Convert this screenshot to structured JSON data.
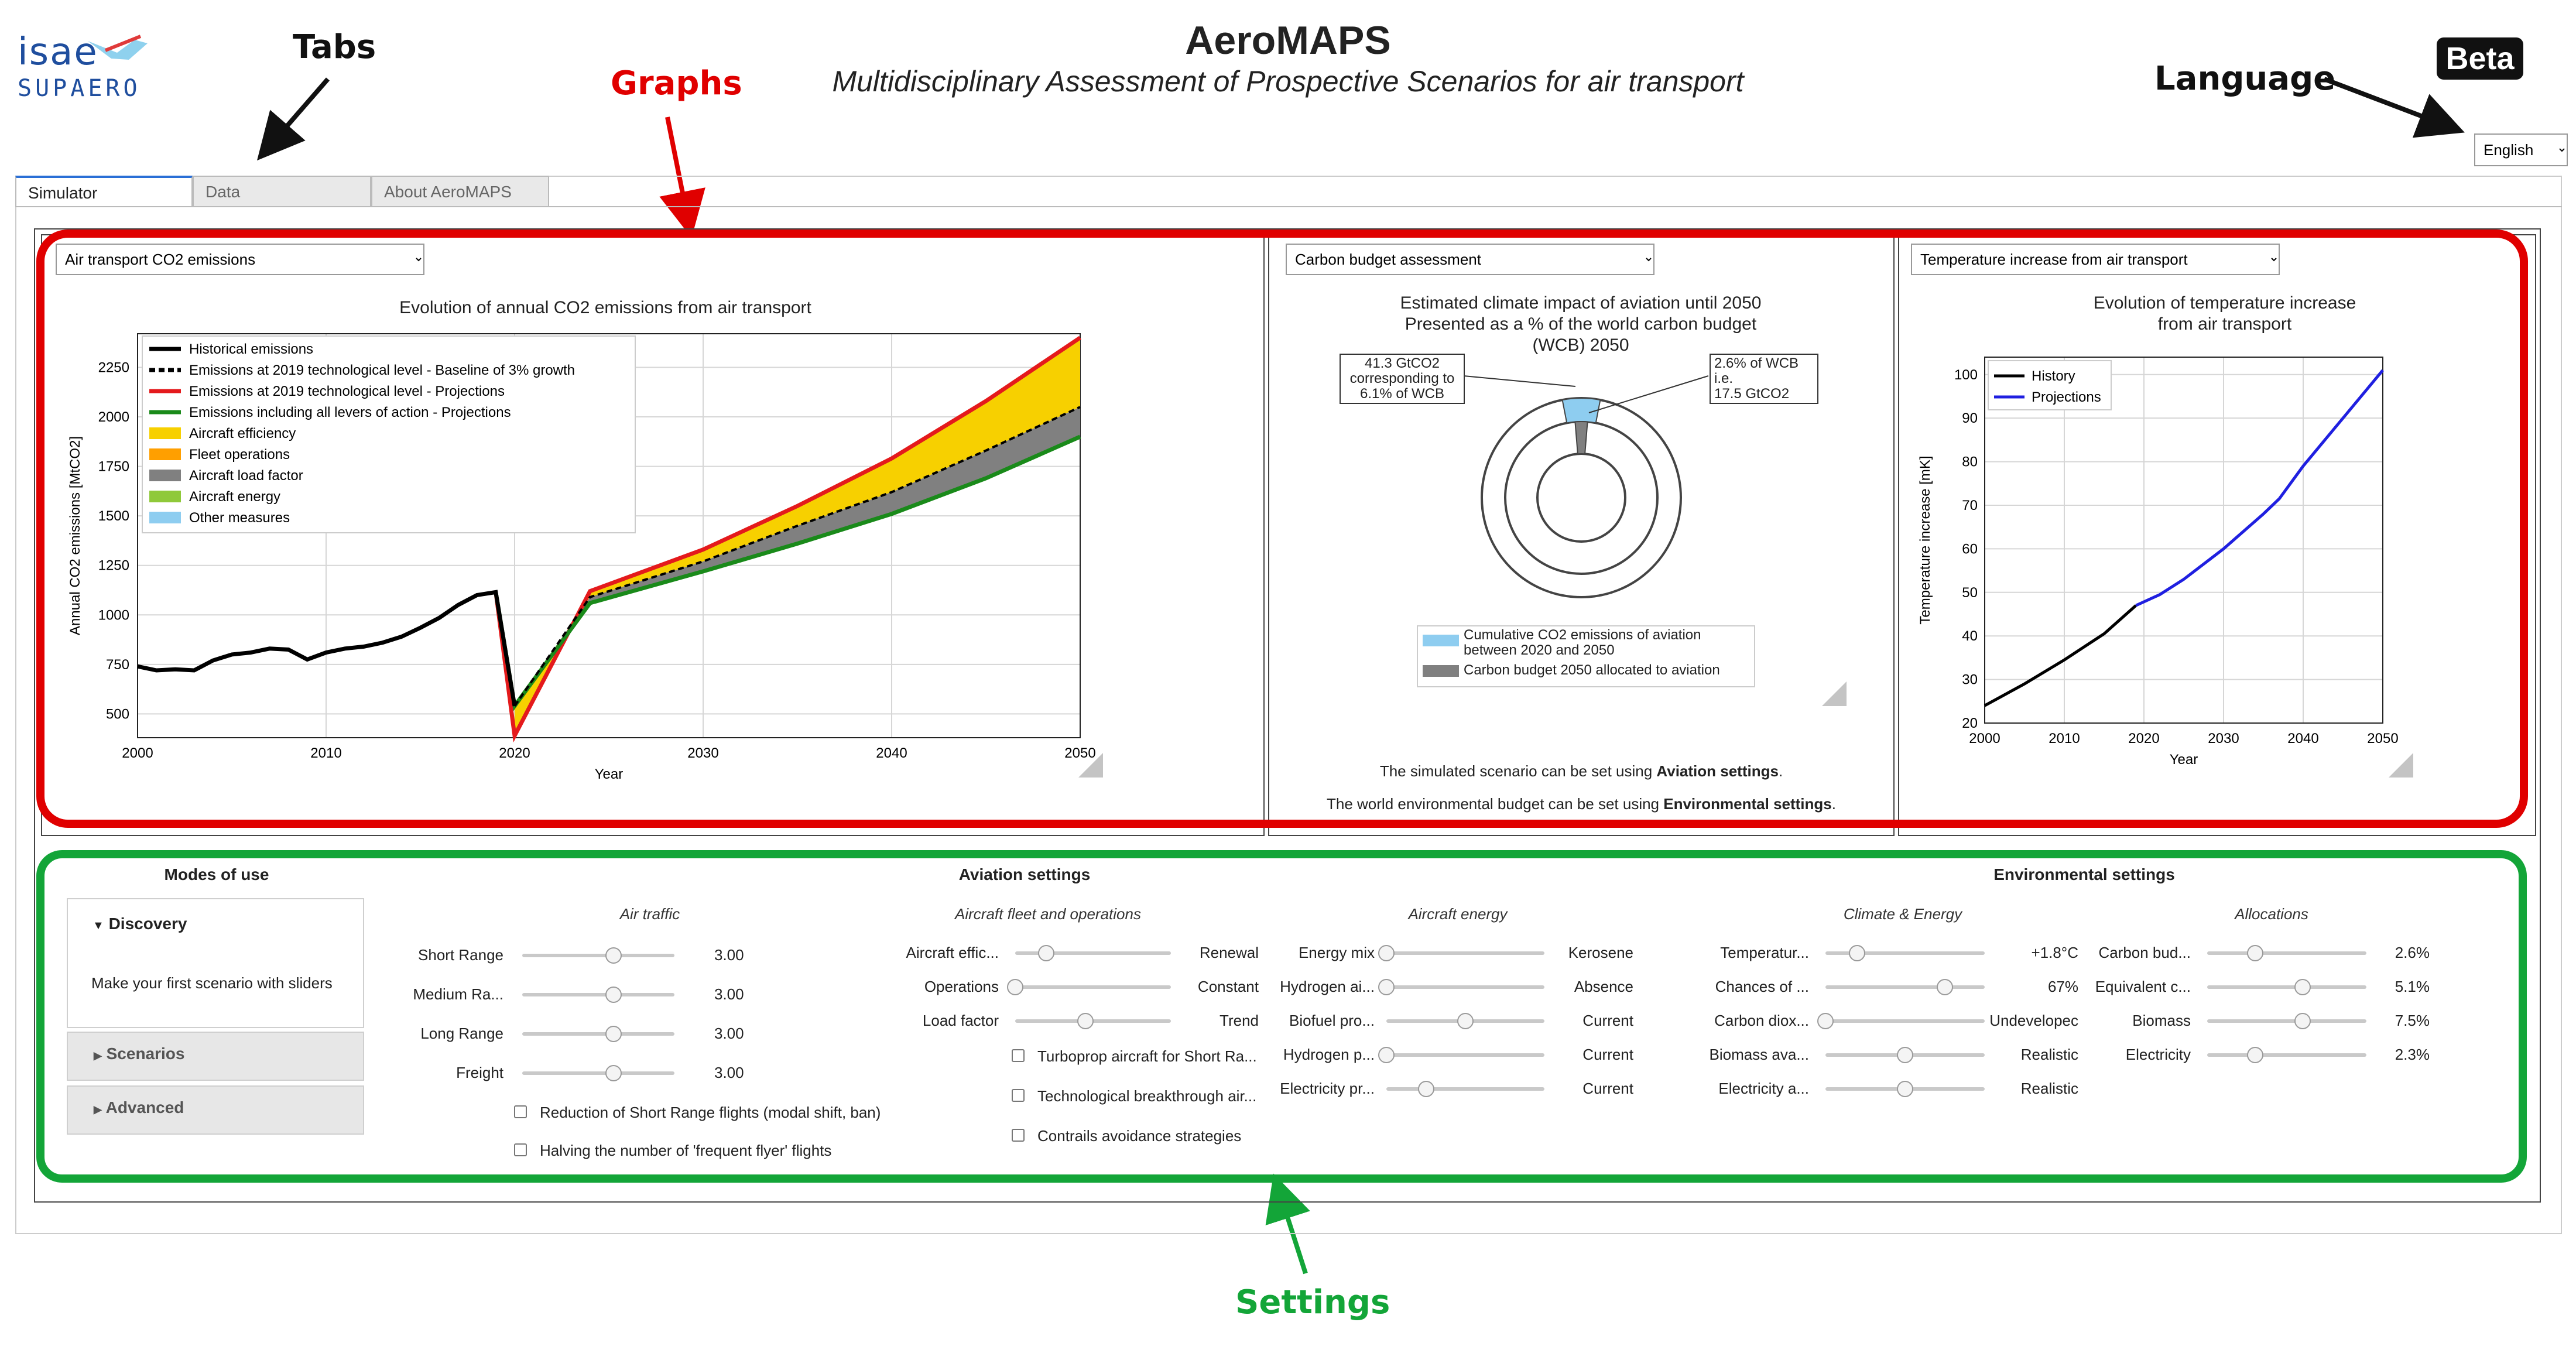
{
  "logo": {
    "line1": "isae",
    "line2": "SUPAERO"
  },
  "header": {
    "title": "AeroMAPS",
    "subtitle": "Multidisciplinary Assessment of Prospective Scenarios for air transport",
    "beta": "Beta"
  },
  "callouts": {
    "tabs": "Tabs",
    "graphs": "Graphs",
    "language": "Language",
    "settings": "Settings"
  },
  "language": {
    "selected": "English"
  },
  "tabs": [
    {
      "label": "Simulator",
      "active": true
    },
    {
      "label": "Data",
      "active": false
    },
    {
      "label": "About AeroMAPS",
      "active": false
    }
  ],
  "graph1": {
    "dropdown": "Air transport CO2 emissions",
    "title": "Evolution of annual CO2 emissions from air transport",
    "xlabel": "Year",
    "ylabel": "Annual CO2 emissions [MtCO2]",
    "legend": [
      {
        "label": "Historical emissions",
        "color": "#000000",
        "kind": "line"
      },
      {
        "label": "Emissions at 2019 technological level - Baseline of 3% growth",
        "color": "#000000",
        "kind": "dash"
      },
      {
        "label": "Emissions at 2019 technological level - Projections",
        "color": "#e41a1c",
        "kind": "line"
      },
      {
        "label": "Emissions including all levers of action - Projections",
        "color": "#1a8a1a",
        "kind": "line"
      },
      {
        "label": "Aircraft efficiency",
        "color": "#f7d000",
        "kind": "patch"
      },
      {
        "label": "Fleet operations",
        "color": "#ff9f00",
        "kind": "patch"
      },
      {
        "label": "Aircraft load factor",
        "color": "#808080",
        "kind": "patch"
      },
      {
        "label": "Aircraft energy",
        "color": "#8fc93a",
        "kind": "patch"
      },
      {
        "label": "Other measures",
        "color": "#8ecdf0",
        "kind": "patch"
      }
    ]
  },
  "chart_data": [
    {
      "type": "area",
      "title": "Evolution of annual CO2 emissions from air transport",
      "xlabel": "Year",
      "ylabel": "Annual CO2 emissions [MtCO2]",
      "xlim": [
        2000,
        2050
      ],
      "ylim": [
        380,
        2420
      ],
      "xticks": [
        2000,
        2010,
        2020,
        2030,
        2040,
        2050
      ],
      "yticks": [
        500,
        750,
        1000,
        1250,
        1500,
        1750,
        2000,
        2250
      ],
      "grid": true,
      "legend_position": "top-left",
      "series": [
        {
          "name": "Historical emissions",
          "x": [
            2000,
            2001,
            2002,
            2003,
            2004,
            2005,
            2006,
            2007,
            2008,
            2009,
            2010,
            2011,
            2012,
            2013,
            2014,
            2015,
            2016,
            2017,
            2018,
            2019,
            2020
          ],
          "values": [
            740,
            720,
            725,
            720,
            770,
            800,
            810,
            830,
            825,
            775,
            810,
            830,
            840,
            860,
            890,
            935,
            985,
            1050,
            1100,
            1115,
            540
          ]
        },
        {
          "name": "Emissions at 2019 technological level - Baseline of 3% growth",
          "x": [
            2020,
            2024,
            2030,
            2035,
            2040,
            2045,
            2050
          ],
          "values": [
            540,
            1090,
            1270,
            1450,
            1620,
            1830,
            2050
          ]
        },
        {
          "name": "Emissions at 2019 technological level - Projections",
          "x": [
            2019,
            2020,
            2024,
            2030,
            2035,
            2040,
            2045,
            2050
          ],
          "values": [
            1115,
            390,
            1120,
            1330,
            1550,
            1790,
            2080,
            2400
          ]
        },
        {
          "name": "Emissions including all levers of action - Projections",
          "x": [
            2019,
            2020,
            2024,
            2030,
            2035,
            2040,
            2045,
            2050
          ],
          "values": [
            1115,
            540,
            1060,
            1220,
            1360,
            1510,
            1690,
            1900
          ]
        }
      ]
    },
    {
      "type": "pie",
      "title": "Estimated climate impact of aviation until 2050\nPresented as a % of the world carbon budget\n(WCB) 2050",
      "annotations": [
        "41.3 GtCO2\ncorresponding to\n6.1% of WCB",
        "2.6% of WCB\ni.e.\n17.5 GtCO2"
      ],
      "series": [
        {
          "name": "Cumulative CO2 emissions of aviation\nbetween 2020 and 2050",
          "values": [
            6.1
          ]
        },
        {
          "name": "Carbon budget 2050 allocated to aviation",
          "values": [
            2.6
          ]
        }
      ],
      "legend_position": "bottom"
    },
    {
      "type": "line",
      "title": "Evolution of temperature increase\nfrom air transport",
      "xlabel": "Year",
      "ylabel": "Temperature increase [mK]",
      "xlim": [
        2000,
        2050
      ],
      "ylim": [
        20,
        104
      ],
      "xticks": [
        2000,
        2010,
        2020,
        2030,
        2040,
        2050
      ],
      "yticks": [
        20,
        30,
        40,
        50,
        60,
        70,
        80,
        90,
        100
      ],
      "grid": true,
      "legend_position": "top-left",
      "series": [
        {
          "name": "History",
          "x": [
            2000,
            2005,
            2010,
            2015,
            2019
          ],
          "values": [
            24,
            29,
            34.5,
            40.5,
            47
          ]
        },
        {
          "name": "Projections",
          "x": [
            2019,
            2022,
            2025,
            2030,
            2035,
            2037,
            2040,
            2045,
            2050
          ],
          "values": [
            47,
            49.5,
            53,
            60,
            68,
            71.5,
            79,
            90,
            101
          ]
        }
      ]
    }
  ],
  "graph2": {
    "dropdown": "Carbon budget assessment",
    "title_lines": [
      "Estimated climate impact of aviation until 2050",
      "Presented as a % of the world carbon budget",
      "(WCB) 2050"
    ],
    "left_note": [
      "41.3 GtCO2",
      "corresponding to",
      "6.1% of WCB"
    ],
    "right_note": [
      "2.6% of WCB",
      "i.e.",
      "17.5 GtCO2"
    ],
    "legend": [
      {
        "label1": "Cumulative CO2 emissions of aviation",
        "label2": "between 2020 and 2050",
        "color": "#8ecdf0"
      },
      {
        "label1": "Carbon budget 2050 allocated to aviation",
        "label2": "",
        "color": "#808080"
      }
    ],
    "note1_pre": "The simulated scenario can be set using ",
    "note1_bold": "Aviation settings",
    "note1_post": ".",
    "note2_pre": "The world environmental budget can be set using ",
    "note2_bold": "Environmental settings",
    "note2_post": "."
  },
  "graph3": {
    "dropdown": "Temperature increase from air transport",
    "title_lines": [
      "Evolution of temperature increase",
      "from air transport"
    ],
    "xlabel": "Year",
    "ylabel": "Temperature increase [mK]",
    "legend": [
      {
        "label": "History",
        "color": "#000000"
      },
      {
        "label": "Projections",
        "color": "#1f1fe0"
      }
    ]
  },
  "modes": {
    "title": "Modes of use",
    "discovery": "Discovery",
    "discovery_desc": "Make your first scenario with sliders",
    "scenarios": "Scenarios",
    "advanced": "Advanced"
  },
  "aviation": {
    "title": "Aviation settings",
    "air_traffic": {
      "title": "Air traffic",
      "sliders": [
        {
          "label": "Short Range",
          "value": "3.00",
          "level": 0.6
        },
        {
          "label": "Medium Ra...",
          "value": "3.00",
          "level": 0.6
        },
        {
          "label": "Long Range",
          "value": "3.00",
          "level": 0.6
        },
        {
          "label": "Freight",
          "value": "3.00",
          "level": 0.6
        }
      ],
      "checkboxes": [
        "Reduction of Short Range flights (modal shift, ban)",
        "Halving the number of 'frequent flyer' flights"
      ]
    },
    "fleet": {
      "title": "Aircraft fleet and operations",
      "sliders": [
        {
          "label": "Aircraft effic...",
          "value": "Renewal",
          "level": 0.2
        },
        {
          "label": "Operations",
          "value": "Constant",
          "level": 0.0
        },
        {
          "label": "Load factor",
          "value": "Trend",
          "level": 0.45
        }
      ],
      "checkboxes": [
        "Turboprop aircraft for Short Ra...",
        "Technological breakthrough air...",
        "Contrails avoidance strategies"
      ]
    },
    "energy": {
      "title": "Aircraft energy",
      "sliders": [
        {
          "label": "Energy mix",
          "value": "Kerosene",
          "level": 0.0
        },
        {
          "label": "Hydrogen ai...",
          "value": "Absence",
          "level": 0.0
        },
        {
          "label": "Biofuel pro...",
          "value": "Current",
          "level": 0.5
        },
        {
          "label": "Hydrogen p...",
          "value": "Current",
          "level": 0.0
        },
        {
          "label": "Electricity pr...",
          "value": "Current",
          "level": 0.25
        }
      ]
    }
  },
  "environmental": {
    "title": "Environmental settings",
    "climate": {
      "title": "Climate & Energy",
      "sliders": [
        {
          "label": "Temperatur...",
          "value": "+1.8°C",
          "level": 0.2
        },
        {
          "label": "Chances of ...",
          "value": "67%",
          "level": 0.75
        },
        {
          "label": "Carbon diox...",
          "value": "Undevelopec",
          "level": 0.0
        },
        {
          "label": "Biomass ava...",
          "value": "Realistic",
          "level": 0.5
        },
        {
          "label": "Electricity a...",
          "value": "Realistic",
          "level": 0.5
        }
      ]
    },
    "allocations": {
      "title": "Allocations",
      "sliders": [
        {
          "label": "Carbon bud...",
          "value": "2.6%",
          "level": 0.3
        },
        {
          "label": "Equivalent c...",
          "value": "5.1%",
          "level": 0.6
        },
        {
          "label": "Biomass",
          "value": "7.5%",
          "level": 0.6
        },
        {
          "label": "Electricity",
          "value": "2.3%",
          "level": 0.3
        }
      ]
    }
  }
}
